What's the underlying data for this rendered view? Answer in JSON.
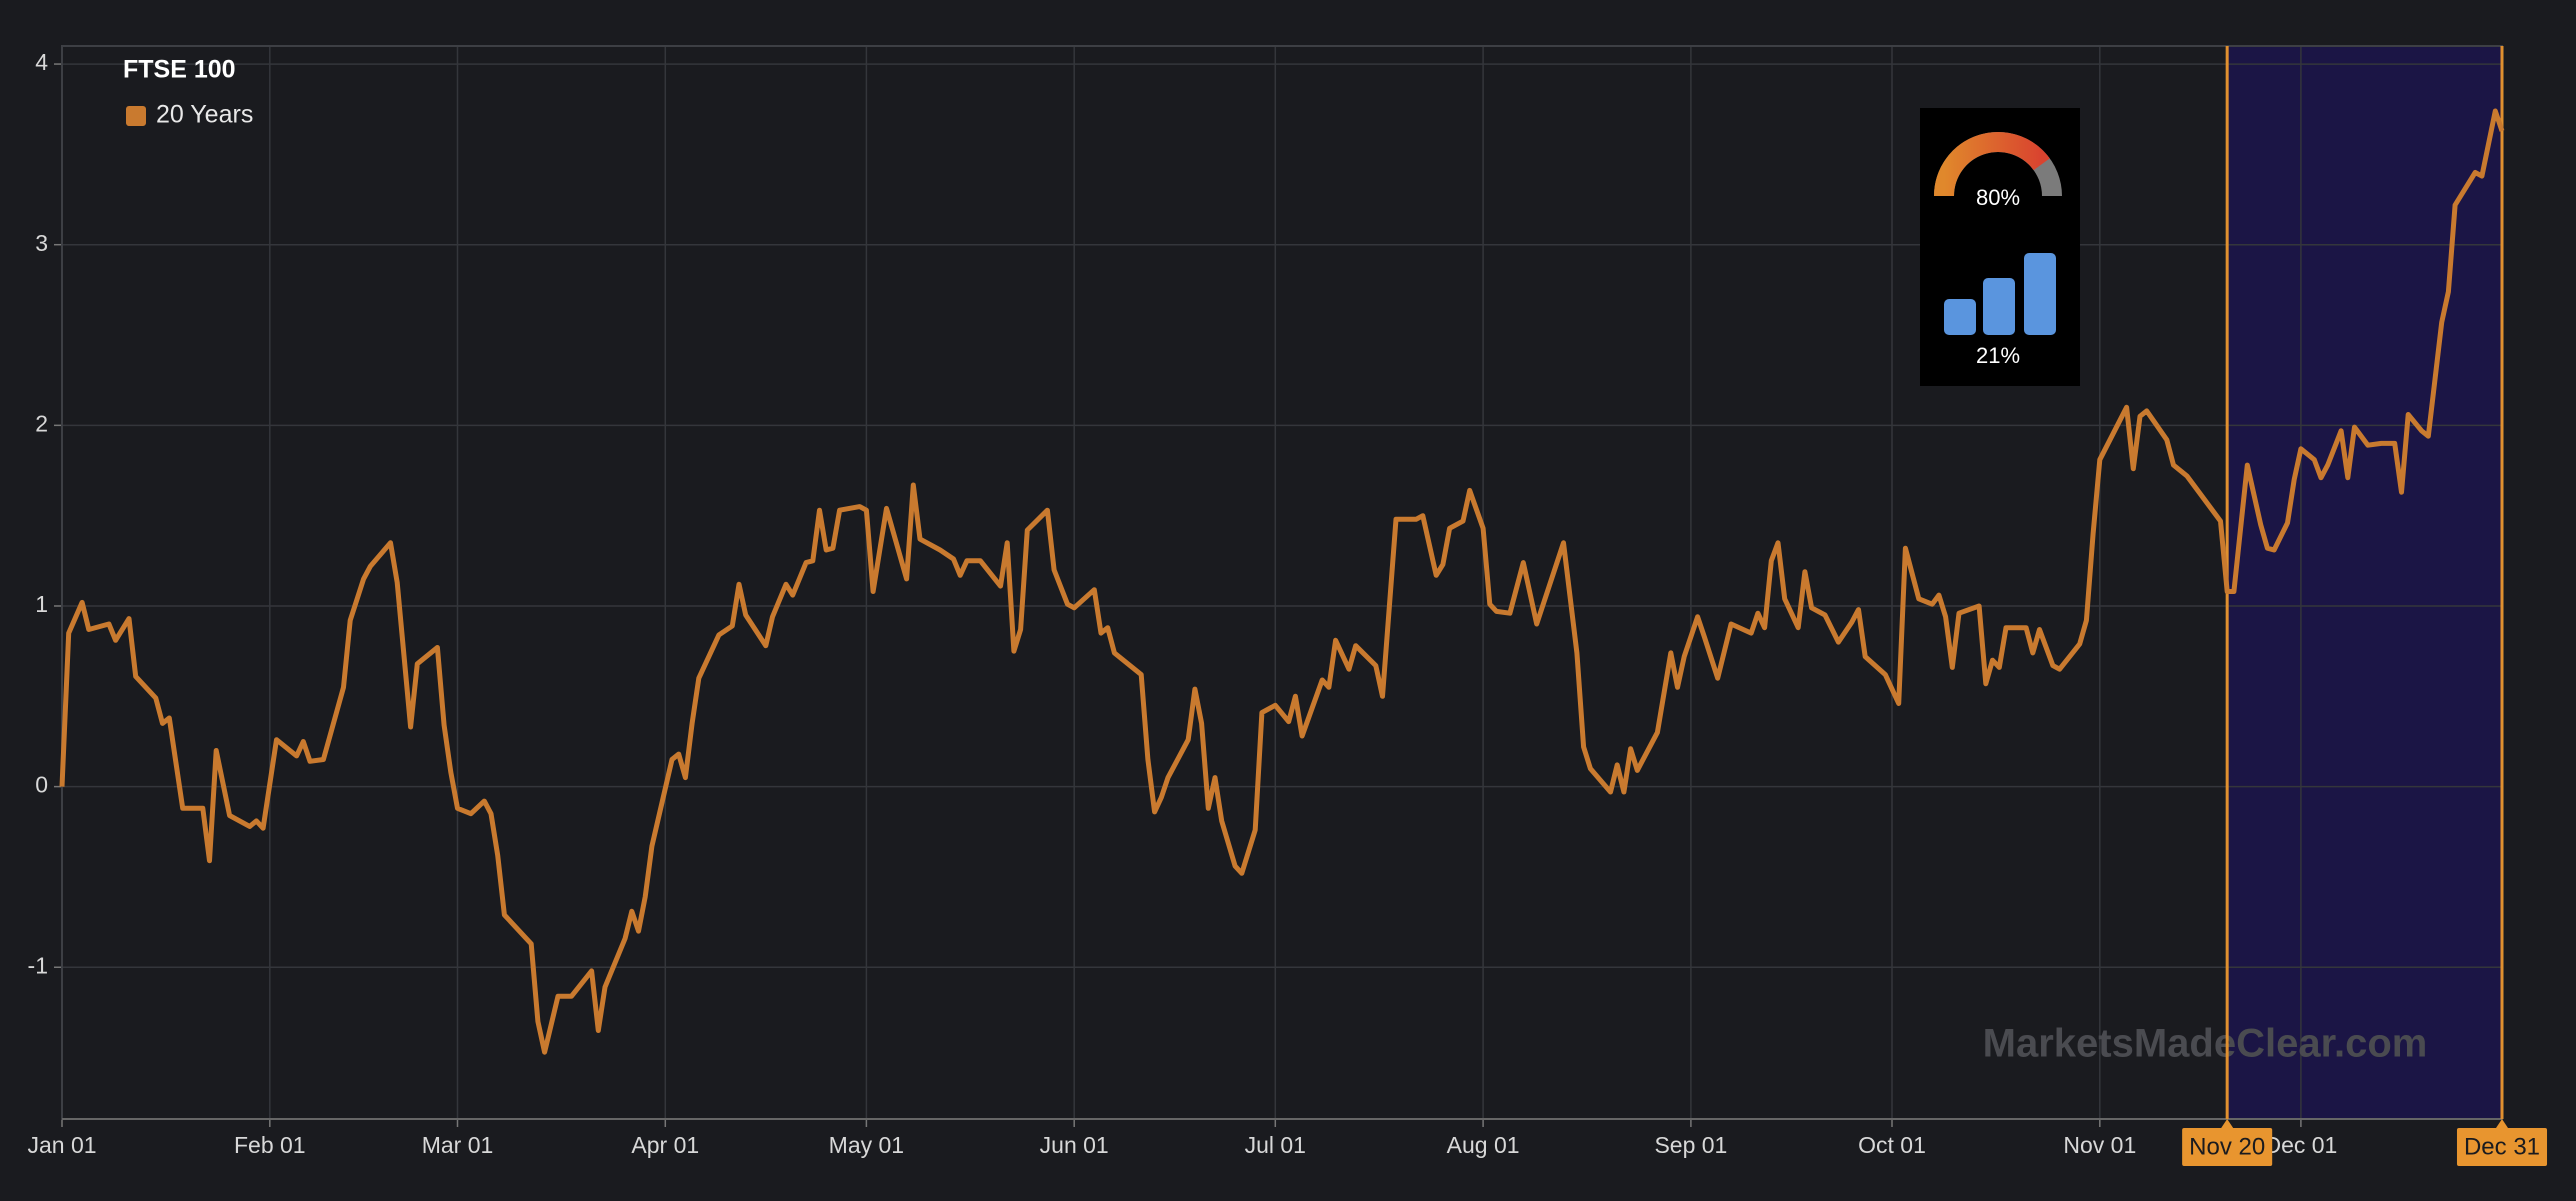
{
  "chart_data": {
    "type": "line",
    "legend_title": "FTSE 100",
    "legend": "top-left",
    "series": [
      {
        "name": "20 Years",
        "color": "#c97a2f",
        "x": [
          "01-01",
          "01-02",
          "01-04",
          "01-05",
          "01-08",
          "01-09",
          "01-11",
          "01-12",
          "01-15",
          "01-16",
          "01-17",
          "01-19",
          "01-22",
          "01-23",
          "01-24",
          "01-26",
          "01-29",
          "01-30",
          "01-31",
          "02-02",
          "02-05",
          "02-06",
          "02-07",
          "02-09",
          "02-12",
          "02-13",
          "02-15",
          "02-16",
          "02-19",
          "02-20",
          "02-22",
          "02-23",
          "02-26",
          "02-27",
          "02-28",
          "03-01",
          "03-03",
          "03-05",
          "03-06",
          "03-07",
          "03-08",
          "03-12",
          "03-13",
          "03-14",
          "03-16",
          "03-18",
          "03-21",
          "03-22",
          "03-23",
          "03-26",
          "03-27",
          "03-28",
          "03-29",
          "03-30",
          "04-02",
          "04-03",
          "04-04",
          "04-05",
          "04-06",
          "04-09",
          "04-11",
          "04-12",
          "04-13",
          "04-16",
          "04-17",
          "04-19",
          "04-20",
          "04-22",
          "04-23",
          "04-24",
          "04-25",
          "04-26",
          "04-27",
          "04-30",
          "05-01",
          "05-02",
          "05-04",
          "05-07",
          "05-08",
          "05-09",
          "05-12",
          "05-14",
          "05-15",
          "05-16",
          "05-18",
          "05-21",
          "05-22",
          "05-23",
          "05-24",
          "05-25",
          "05-28",
          "05-29",
          "05-31",
          "06-01",
          "06-04",
          "06-05",
          "06-06",
          "06-07",
          "06-11",
          "06-12",
          "06-13",
          "06-14",
          "06-15",
          "06-18",
          "06-19",
          "06-20",
          "06-21",
          "06-22",
          "06-23",
          "06-25",
          "06-26",
          "06-28",
          "06-29",
          "07-01",
          "07-03",
          "07-04",
          "07-05",
          "07-08",
          "07-09",
          "07-10",
          "07-12",
          "07-13",
          "07-16",
          "07-17",
          "07-19",
          "07-22",
          "07-23",
          "07-25",
          "07-26",
          "07-27",
          "07-29",
          "07-30",
          "08-01",
          "08-02",
          "08-03",
          "08-05",
          "08-07",
          "08-09",
          "08-13",
          "08-15",
          "08-16",
          "08-17",
          "08-20",
          "08-21",
          "08-22",
          "08-23",
          "08-24",
          "08-27",
          "08-29",
          "08-30",
          "08-31",
          "09-02",
          "09-03",
          "09-05",
          "09-07",
          "09-10",
          "09-11",
          "09-12",
          "09-13",
          "09-14",
          "09-15",
          "09-17",
          "09-18",
          "09-19",
          "09-21",
          "09-23",
          "09-25",
          "09-26",
          "09-27",
          "09-30",
          "10-02",
          "10-03",
          "10-05",
          "10-07",
          "10-08",
          "10-09",
          "10-10",
          "10-11",
          "10-14",
          "10-15",
          "10-16",
          "10-17",
          "10-18",
          "10-21",
          "10-22",
          "10-23",
          "10-25",
          "10-26",
          "10-29",
          "10-30",
          "10-31",
          "11-01",
          "11-05",
          "11-06",
          "11-07",
          "11-08",
          "11-11",
          "11-12",
          "11-14",
          "11-19",
          "11-20",
          "11-21",
          "11-23",
          "11-25",
          "11-26",
          "11-27",
          "11-29",
          "11-30",
          "12-01",
          "12-03",
          "12-04",
          "12-05",
          "12-07",
          "12-08",
          "12-09",
          "12-11",
          "12-13",
          "12-15",
          "12-16",
          "12-17",
          "12-19",
          "12-20",
          "12-22",
          "12-23",
          "12-24",
          "12-27",
          "12-28",
          "12-30",
          "12-31"
        ],
        "values": [
          0.0,
          0.85,
          1.02,
          0.87,
          0.9,
          0.81,
          0.93,
          0.61,
          0.49,
          0.35,
          0.38,
          -0.12,
          -0.12,
          -0.41,
          0.2,
          -0.16,
          -0.22,
          -0.19,
          -0.23,
          0.26,
          0.17,
          0.25,
          0.14,
          0.15,
          0.55,
          0.92,
          1.15,
          1.22,
          1.35,
          1.13,
          0.33,
          0.68,
          0.77,
          0.34,
          0.08,
          -0.12,
          -0.15,
          -0.08,
          -0.15,
          -0.38,
          -0.71,
          -0.87,
          -1.3,
          -1.47,
          -1.16,
          -1.16,
          -1.02,
          -1.35,
          -1.11,
          -0.84,
          -0.69,
          -0.8,
          -0.61,
          -0.33,
          0.15,
          0.18,
          0.05,
          0.35,
          0.6,
          0.84,
          0.89,
          1.12,
          0.95,
          0.78,
          0.94,
          1.12,
          1.06,
          1.24,
          1.25,
          1.53,
          1.31,
          1.32,
          1.53,
          1.55,
          1.53,
          1.08,
          1.54,
          1.15,
          1.67,
          1.37,
          1.31,
          1.26,
          1.17,
          1.25,
          1.25,
          1.11,
          1.35,
          0.75,
          0.87,
          1.42,
          1.53,
          1.2,
          1.01,
          0.99,
          1.09,
          0.85,
          0.88,
          0.74,
          0.62,
          0.15,
          -0.14,
          -0.06,
          0.05,
          0.26,
          0.54,
          0.35,
          -0.12,
          0.05,
          -0.19,
          -0.44,
          -0.48,
          -0.24,
          0.41,
          0.45,
          0.36,
          0.5,
          0.28,
          0.59,
          0.55,
          0.81,
          0.65,
          0.78,
          0.67,
          0.5,
          1.48,
          1.48,
          1.5,
          1.17,
          1.23,
          1.43,
          1.47,
          1.64,
          1.43,
          1.01,
          0.97,
          0.96,
          1.24,
          0.9,
          1.35,
          0.74,
          0.22,
          0.1,
          -0.03,
          0.12,
          -0.03,
          0.21,
          0.09,
          0.3,
          0.74,
          0.55,
          0.72,
          0.94,
          0.83,
          0.6,
          0.9,
          0.85,
          0.96,
          0.88,
          1.25,
          1.35,
          1.04,
          0.88,
          1.19,
          0.99,
          0.95,
          0.8,
          0.91,
          0.98,
          0.72,
          0.62,
          0.46,
          1.32,
          1.04,
          1.01,
          1.06,
          0.94,
          0.66,
          0.96,
          1.0,
          0.57,
          0.7,
          0.66,
          0.88,
          0.88,
          0.74,
          0.87,
          0.67,
          0.65,
          0.79,
          0.92,
          1.4,
          1.81,
          2.1,
          1.76,
          2.05,
          2.08,
          1.92,
          1.78,
          1.72,
          1.47,
          1.08,
          1.08,
          1.78,
          1.45,
          1.32,
          1.31,
          1.46,
          1.7,
          1.87,
          1.81,
          1.71,
          1.78,
          1.97,
          1.71,
          1.99,
          1.89,
          1.9,
          1.9,
          1.63,
          2.06,
          1.97,
          1.94,
          2.57,
          2.74,
          3.22,
          3.4,
          3.38,
          3.74,
          3.63
        ]
      }
    ],
    "xlim": [
      "01-01",
      "12-31"
    ],
    "xticks": [
      {
        "value": "01-01",
        "label": "Jan 01"
      },
      {
        "value": "02-01",
        "label": "Feb 01"
      },
      {
        "value": "03-01",
        "label": "Mar 01"
      },
      {
        "value": "04-01",
        "label": "Apr 01"
      },
      {
        "value": "05-01",
        "label": "May 01"
      },
      {
        "value": "06-01",
        "label": "Jun 01"
      },
      {
        "value": "07-01",
        "label": "Jul 01"
      },
      {
        "value": "08-01",
        "label": "Aug 01"
      },
      {
        "value": "09-01",
        "label": "Sep 01"
      },
      {
        "value": "10-01",
        "label": "Oct 01"
      },
      {
        "value": "11-01",
        "label": "Nov 01"
      },
      {
        "value": "12-01",
        "label": "Dec 01"
      }
    ],
    "ylim": [
      -1.84,
      4.1
    ],
    "yticks": [
      -1,
      0,
      1,
      2,
      3,
      4
    ],
    "grid": true,
    "highlight": {
      "start": "11-20",
      "end": "12-31",
      "start_label": "Nov 20",
      "end_label": "Dec 31",
      "color": "#1b1545"
    },
    "gauge": {
      "value": 80,
      "value_label": "80%"
    },
    "bars_label": "21%",
    "watermark": "MarketsMadeClear.com"
  }
}
